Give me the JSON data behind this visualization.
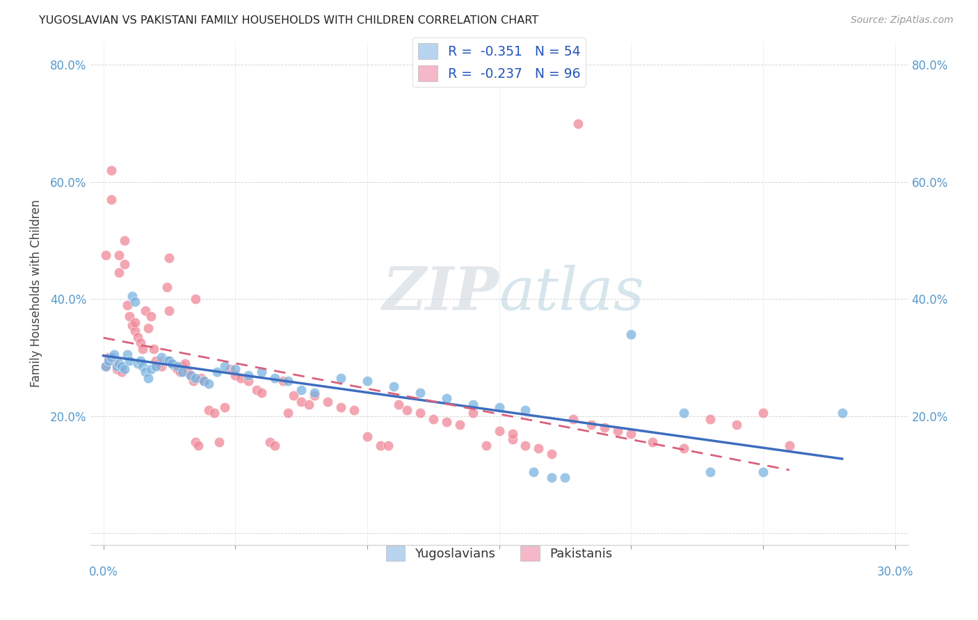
{
  "title": "YUGOSLAVIAN VS PAKISTANI FAMILY HOUSEHOLDS WITH CHILDREN CORRELATION CHART",
  "source": "Source: ZipAtlas.com",
  "ylabel": "Family Households with Children",
  "watermark_zip": "ZIP",
  "watermark_atlas": "atlas",
  "yugo_color": "#7ab3e0",
  "pak_color": "#f08898",
  "yugo_line_color": "#3d6dbf",
  "pak_line_color": "#d9607a",
  "legend_yugo_color": "#b8d4ee",
  "legend_pak_color": "#f4b8c8",
  "background_color": "#ffffff",
  "grid_color": "#cccccc",
  "axis_label_color": "#5599cc",
  "title_color": "#222222",
  "source_color": "#999999",
  "yugo_R": -0.351,
  "yugo_N": 54,
  "pak_R": -0.237,
  "pak_N": 96,
  "xlim": [
    -0.005,
    0.305
  ],
  "ylim": [
    -0.02,
    0.84
  ],
  "x_ticks": [
    0.0,
    0.05,
    0.1,
    0.15,
    0.2,
    0.25,
    0.3
  ],
  "y_ticks": [
    0.0,
    0.2,
    0.4,
    0.6,
    0.8
  ],
  "y_tick_labels": [
    "",
    "20.0%",
    "40.0%",
    "60.0%",
    "80.0%"
  ],
  "yugo_points": [
    [
      0.001,
      0.285
    ],
    [
      0.002,
      0.295
    ],
    [
      0.003,
      0.3
    ],
    [
      0.004,
      0.305
    ],
    [
      0.005,
      0.285
    ],
    [
      0.006,
      0.29
    ],
    [
      0.007,
      0.285
    ],
    [
      0.008,
      0.28
    ],
    [
      0.009,
      0.305
    ],
    [
      0.01,
      0.295
    ],
    [
      0.011,
      0.405
    ],
    [
      0.012,
      0.395
    ],
    [
      0.013,
      0.29
    ],
    [
      0.014,
      0.295
    ],
    [
      0.015,
      0.285
    ],
    [
      0.016,
      0.275
    ],
    [
      0.017,
      0.265
    ],
    [
      0.018,
      0.28
    ],
    [
      0.02,
      0.285
    ],
    [
      0.022,
      0.3
    ],
    [
      0.024,
      0.295
    ],
    [
      0.025,
      0.295
    ],
    [
      0.026,
      0.29
    ],
    [
      0.028,
      0.285
    ],
    [
      0.03,
      0.275
    ],
    [
      0.033,
      0.27
    ],
    [
      0.035,
      0.265
    ],
    [
      0.038,
      0.26
    ],
    [
      0.04,
      0.255
    ],
    [
      0.043,
      0.275
    ],
    [
      0.046,
      0.285
    ],
    [
      0.05,
      0.28
    ],
    [
      0.055,
      0.27
    ],
    [
      0.06,
      0.275
    ],
    [
      0.065,
      0.265
    ],
    [
      0.07,
      0.26
    ],
    [
      0.075,
      0.245
    ],
    [
      0.08,
      0.24
    ],
    [
      0.09,
      0.265
    ],
    [
      0.1,
      0.26
    ],
    [
      0.11,
      0.25
    ],
    [
      0.12,
      0.24
    ],
    [
      0.13,
      0.23
    ],
    [
      0.14,
      0.22
    ],
    [
      0.15,
      0.215
    ],
    [
      0.16,
      0.21
    ],
    [
      0.163,
      0.105
    ],
    [
      0.17,
      0.095
    ],
    [
      0.175,
      0.095
    ],
    [
      0.2,
      0.34
    ],
    [
      0.22,
      0.205
    ],
    [
      0.23,
      0.105
    ],
    [
      0.25,
      0.105
    ],
    [
      0.28,
      0.205
    ]
  ],
  "pak_points": [
    [
      0.001,
      0.285
    ],
    [
      0.001,
      0.475
    ],
    [
      0.002,
      0.3
    ],
    [
      0.003,
      0.62
    ],
    [
      0.003,
      0.57
    ],
    [
      0.004,
      0.295
    ],
    [
      0.005,
      0.28
    ],
    [
      0.006,
      0.475
    ],
    [
      0.006,
      0.445
    ],
    [
      0.007,
      0.275
    ],
    [
      0.008,
      0.5
    ],
    [
      0.008,
      0.46
    ],
    [
      0.009,
      0.39
    ],
    [
      0.01,
      0.37
    ],
    [
      0.011,
      0.355
    ],
    [
      0.012,
      0.345
    ],
    [
      0.013,
      0.335
    ],
    [
      0.014,
      0.325
    ],
    [
      0.015,
      0.315
    ],
    [
      0.016,
      0.38
    ],
    [
      0.017,
      0.35
    ],
    [
      0.018,
      0.37
    ],
    [
      0.019,
      0.315
    ],
    [
      0.02,
      0.295
    ],
    [
      0.021,
      0.29
    ],
    [
      0.022,
      0.285
    ],
    [
      0.023,
      0.295
    ],
    [
      0.024,
      0.42
    ],
    [
      0.025,
      0.47
    ],
    [
      0.025,
      0.295
    ],
    [
      0.026,
      0.29
    ],
    [
      0.027,
      0.285
    ],
    [
      0.028,
      0.28
    ],
    [
      0.029,
      0.275
    ],
    [
      0.03,
      0.285
    ],
    [
      0.031,
      0.29
    ],
    [
      0.032,
      0.275
    ],
    [
      0.033,
      0.27
    ],
    [
      0.034,
      0.26
    ],
    [
      0.035,
      0.155
    ],
    [
      0.036,
      0.15
    ],
    [
      0.037,
      0.265
    ],
    [
      0.038,
      0.26
    ],
    [
      0.04,
      0.21
    ],
    [
      0.042,
      0.205
    ],
    [
      0.044,
      0.155
    ],
    [
      0.046,
      0.215
    ],
    [
      0.048,
      0.28
    ],
    [
      0.05,
      0.27
    ],
    [
      0.052,
      0.265
    ],
    [
      0.055,
      0.26
    ],
    [
      0.058,
      0.245
    ],
    [
      0.06,
      0.24
    ],
    [
      0.063,
      0.155
    ],
    [
      0.065,
      0.15
    ],
    [
      0.068,
      0.26
    ],
    [
      0.07,
      0.205
    ],
    [
      0.072,
      0.235
    ],
    [
      0.075,
      0.225
    ],
    [
      0.078,
      0.22
    ],
    [
      0.08,
      0.235
    ],
    [
      0.085,
      0.225
    ],
    [
      0.09,
      0.215
    ],
    [
      0.095,
      0.21
    ],
    [
      0.1,
      0.165
    ],
    [
      0.105,
      0.15
    ],
    [
      0.108,
      0.15
    ],
    [
      0.112,
      0.22
    ],
    [
      0.115,
      0.21
    ],
    [
      0.12,
      0.205
    ],
    [
      0.125,
      0.195
    ],
    [
      0.13,
      0.19
    ],
    [
      0.135,
      0.185
    ],
    [
      0.14,
      0.205
    ],
    [
      0.145,
      0.15
    ],
    [
      0.15,
      0.175
    ],
    [
      0.155,
      0.16
    ],
    [
      0.16,
      0.15
    ],
    [
      0.165,
      0.145
    ],
    [
      0.17,
      0.135
    ],
    [
      0.178,
      0.195
    ],
    [
      0.185,
      0.185
    ],
    [
      0.19,
      0.18
    ],
    [
      0.195,
      0.175
    ],
    [
      0.2,
      0.17
    ],
    [
      0.208,
      0.155
    ],
    [
      0.22,
      0.145
    ],
    [
      0.23,
      0.195
    ],
    [
      0.24,
      0.185
    ],
    [
      0.25,
      0.205
    ],
    [
      0.26,
      0.15
    ],
    [
      0.155,
      0.17
    ],
    [
      0.18,
      0.7
    ],
    [
      0.035,
      0.4
    ],
    [
      0.025,
      0.38
    ],
    [
      0.012,
      0.36
    ]
  ]
}
